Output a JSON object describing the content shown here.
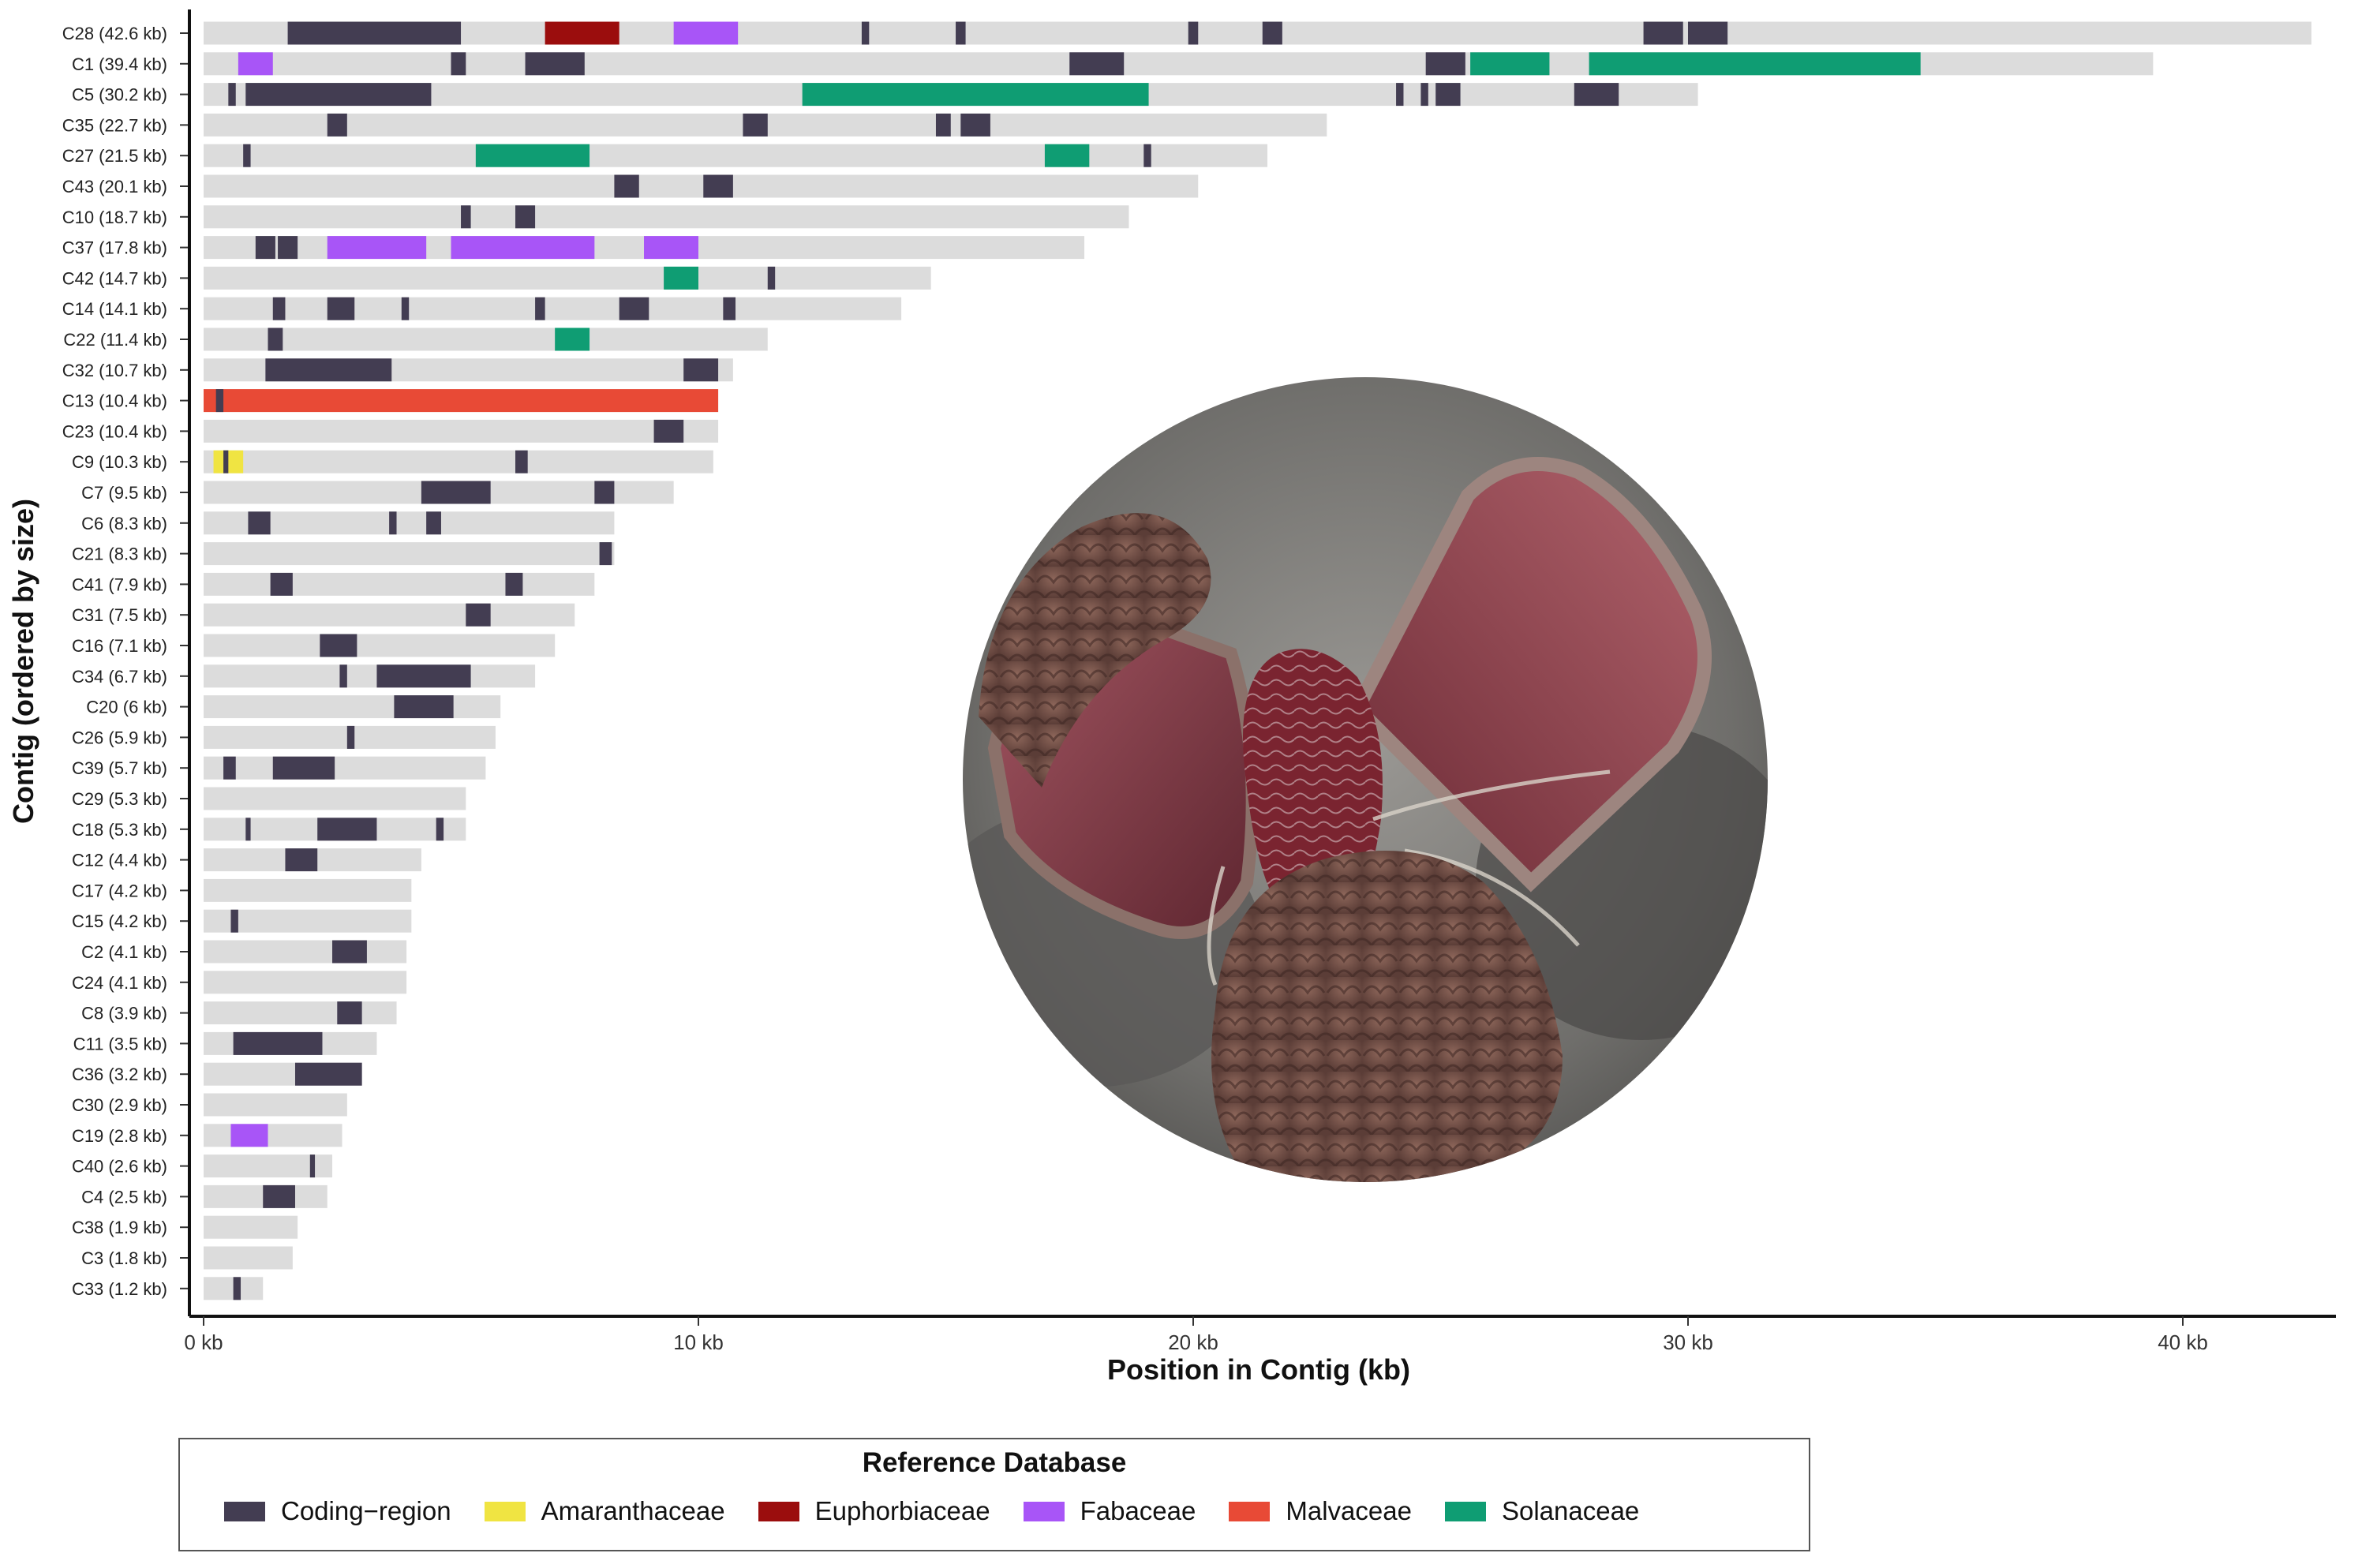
{
  "chart_data": {
    "type": "bar",
    "subtype": "horizontal-segmented-contig-map",
    "xlabel": "Position in Contig (kb)",
    "ylabel": "Contig (ordered by size)",
    "xlim": [
      0,
      43
    ],
    "xticks": [
      0,
      10,
      20,
      30,
      40
    ],
    "xtick_labels": [
      "0 kb",
      "10 kb",
      "20 kb",
      "30 kb",
      "40 kb"
    ],
    "grid": false,
    "legend": {
      "title": "Reference Database",
      "position": "bottom",
      "entries": [
        {
          "label": "Coding−region",
          "color": "#433d52"
        },
        {
          "label": "Amaranthaceae",
          "color": "#f0e442"
        },
        {
          "label": "Euphorbiaceae",
          "color": "#9b0d0d"
        },
        {
          "label": "Fabaceae",
          "color": "#a855f7"
        },
        {
          "label": "Malvaceae",
          "color": "#e84a36"
        },
        {
          "label": "Solanaceae",
          "color": "#0f9d73"
        }
      ]
    },
    "contig_color": "#dcdcdc",
    "contigs": [
      {
        "label": "C28 (42.6 kb)",
        "length": 42.6,
        "segments": [
          {
            "type": "Coding−region",
            "start": 1.7,
            "end": 5.2
          },
          {
            "type": "Euphorbiaceae",
            "start": 6.9,
            "end": 8.4
          },
          {
            "type": "Fabaceae",
            "start": 9.5,
            "end": 10.8
          },
          {
            "type": "Coding−region",
            "start": 13.3,
            "end": 13.45
          },
          {
            "type": "Coding−region",
            "start": 15.2,
            "end": 15.4
          },
          {
            "type": "Coding−region",
            "start": 19.9,
            "end": 20.1
          },
          {
            "type": "Coding−region",
            "start": 21.4,
            "end": 21.8
          },
          {
            "type": "Coding−region",
            "start": 29.1,
            "end": 29.9
          },
          {
            "type": "Coding−region",
            "start": 30.0,
            "end": 30.8
          }
        ]
      },
      {
        "label": "C1 (39.4 kb)",
        "length": 39.4,
        "segments": [
          {
            "type": "Fabaceae",
            "start": 0.7,
            "end": 1.4
          },
          {
            "type": "Coding−region",
            "start": 5.0,
            "end": 5.3
          },
          {
            "type": "Coding−region",
            "start": 6.5,
            "end": 7.7
          },
          {
            "type": "Coding−region",
            "start": 17.5,
            "end": 18.6
          },
          {
            "type": "Coding−region",
            "start": 24.7,
            "end": 25.5
          },
          {
            "type": "Solanaceae",
            "start": 25.6,
            "end": 27.2
          },
          {
            "type": "Solanaceae",
            "start": 28.0,
            "end": 34.7
          }
        ]
      },
      {
        "label": "C5 (30.2 kb)",
        "length": 30.2,
        "segments": [
          {
            "type": "Coding−region",
            "start": 0.5,
            "end": 0.65
          },
          {
            "type": "Coding−region",
            "start": 0.85,
            "end": 4.6
          },
          {
            "type": "Solanaceae",
            "start": 12.1,
            "end": 19.1
          },
          {
            "type": "Coding−region",
            "start": 24.1,
            "end": 24.25
          },
          {
            "type": "Coding−region",
            "start": 24.6,
            "end": 24.75
          },
          {
            "type": "Coding−region",
            "start": 24.9,
            "end": 25.4
          },
          {
            "type": "Coding−region",
            "start": 27.7,
            "end": 28.6
          }
        ]
      },
      {
        "label": "C35 (22.7 kb)",
        "length": 22.7,
        "segments": [
          {
            "type": "Coding−region",
            "start": 2.5,
            "end": 2.9
          },
          {
            "type": "Coding−region",
            "start": 10.9,
            "end": 11.4
          },
          {
            "type": "Coding−region",
            "start": 14.8,
            "end": 15.1
          },
          {
            "type": "Coding−region",
            "start": 15.3,
            "end": 15.9
          }
        ]
      },
      {
        "label": "C27 (21.5 kb)",
        "length": 21.5,
        "segments": [
          {
            "type": "Coding−region",
            "start": 0.8,
            "end": 0.95
          },
          {
            "type": "Solanaceae",
            "start": 5.5,
            "end": 7.8
          },
          {
            "type": "Solanaceae",
            "start": 17.0,
            "end": 17.9
          },
          {
            "type": "Coding−region",
            "start": 19.0,
            "end": 19.15
          }
        ]
      },
      {
        "label": "C43 (20.1 kb)",
        "length": 20.1,
        "segments": [
          {
            "type": "Coding−region",
            "start": 8.3,
            "end": 8.8
          },
          {
            "type": "Coding−region",
            "start": 10.1,
            "end": 10.7
          }
        ]
      },
      {
        "label": "C10 (18.7 kb)",
        "length": 18.7,
        "segments": [
          {
            "type": "Coding−region",
            "start": 5.2,
            "end": 5.4
          },
          {
            "type": "Coding−region",
            "start": 6.3,
            "end": 6.7
          }
        ]
      },
      {
        "label": "C37 (17.8 kb)",
        "length": 17.8,
        "segments": [
          {
            "type": "Coding−region",
            "start": 1.05,
            "end": 1.45
          },
          {
            "type": "Coding−region",
            "start": 1.5,
            "end": 1.9
          },
          {
            "type": "Fabaceae",
            "start": 2.5,
            "end": 4.5
          },
          {
            "type": "Fabaceae",
            "start": 5.0,
            "end": 7.9
          },
          {
            "type": "Fabaceae",
            "start": 8.9,
            "end": 10.0
          }
        ]
      },
      {
        "label": "C42 (14.7 kb)",
        "length": 14.7,
        "segments": [
          {
            "type": "Solanaceae",
            "start": 9.3,
            "end": 10.0
          },
          {
            "type": "Coding−region",
            "start": 11.4,
            "end": 11.55
          }
        ]
      },
      {
        "label": "C14 (14.1 kb)",
        "length": 14.1,
        "segments": [
          {
            "type": "Coding−region",
            "start": 1.4,
            "end": 1.65
          },
          {
            "type": "Coding−region",
            "start": 2.5,
            "end": 3.05
          },
          {
            "type": "Coding−region",
            "start": 4.0,
            "end": 4.15
          },
          {
            "type": "Coding−region",
            "start": 6.7,
            "end": 6.9
          },
          {
            "type": "Coding−region",
            "start": 8.4,
            "end": 9.0
          },
          {
            "type": "Coding−region",
            "start": 10.5,
            "end": 10.75
          }
        ]
      },
      {
        "label": "C22 (11.4 kb)",
        "length": 11.4,
        "segments": [
          {
            "type": "Coding−region",
            "start": 1.3,
            "end": 1.6
          },
          {
            "type": "Solanaceae",
            "start": 7.1,
            "end": 7.8
          }
        ]
      },
      {
        "label": "C32 (10.7 kb)",
        "length": 10.7,
        "segments": [
          {
            "type": "Coding−region",
            "start": 1.25,
            "end": 3.8
          },
          {
            "type": "Coding−region",
            "start": 9.7,
            "end": 10.4
          }
        ]
      },
      {
        "label": "C13 (10.4 kb)",
        "length": 10.4,
        "segments": [
          {
            "type": "Malvaceae",
            "start": 0.0,
            "end": 10.4
          },
          {
            "type": "Coding−region",
            "start": 0.25,
            "end": 0.4
          }
        ]
      },
      {
        "label": "C23 (10.4 kb)",
        "length": 10.4,
        "segments": [
          {
            "type": "Coding−region",
            "start": 9.1,
            "end": 9.7
          }
        ]
      },
      {
        "label": "C9 (10.3 kb)",
        "length": 10.3,
        "segments": [
          {
            "type": "Amaranthaceae",
            "start": 0.2,
            "end": 0.8
          },
          {
            "type": "Coding−region",
            "start": 0.4,
            "end": 0.5
          },
          {
            "type": "Coding−region",
            "start": 6.3,
            "end": 6.55
          }
        ]
      },
      {
        "label": "C7 (9.5 kb)",
        "length": 9.5,
        "segments": [
          {
            "type": "Coding−region",
            "start": 4.4,
            "end": 5.8
          },
          {
            "type": "Coding−region",
            "start": 7.9,
            "end": 8.3
          }
        ]
      },
      {
        "label": "C6 (8.3 kb)",
        "length": 8.3,
        "segments": [
          {
            "type": "Coding−region",
            "start": 0.9,
            "end": 1.35
          },
          {
            "type": "Coding−region",
            "start": 3.75,
            "end": 3.9
          },
          {
            "type": "Coding−region",
            "start": 4.5,
            "end": 4.8
          }
        ]
      },
      {
        "label": "C21 (8.3 kb)",
        "length": 8.3,
        "segments": [
          {
            "type": "Coding−region",
            "start": 8.0,
            "end": 8.25
          }
        ]
      },
      {
        "label": "C41 (7.9 kb)",
        "length": 7.9,
        "segments": [
          {
            "type": "Coding−region",
            "start": 1.35,
            "end": 1.8
          },
          {
            "type": "Coding−region",
            "start": 6.1,
            "end": 6.45
          }
        ]
      },
      {
        "label": "C31 (7.5 kb)",
        "length": 7.5,
        "segments": [
          {
            "type": "Coding−region",
            "start": 5.3,
            "end": 5.8
          }
        ]
      },
      {
        "label": "C16 (7.1 kb)",
        "length": 7.1,
        "segments": [
          {
            "type": "Coding−region",
            "start": 2.35,
            "end": 3.1
          }
        ]
      },
      {
        "label": "C34 (6.7 kb)",
        "length": 6.7,
        "segments": [
          {
            "type": "Coding−region",
            "start": 2.75,
            "end": 2.9
          },
          {
            "type": "Coding−region",
            "start": 3.5,
            "end": 5.4
          }
        ]
      },
      {
        "label": "C20 (6 kb)",
        "length": 6.0,
        "segments": [
          {
            "type": "Coding−region",
            "start": 3.85,
            "end": 5.05
          }
        ]
      },
      {
        "label": "C26 (5.9 kb)",
        "length": 5.9,
        "segments": [
          {
            "type": "Coding−region",
            "start": 2.9,
            "end": 3.05
          }
        ]
      },
      {
        "label": "C39 (5.7 kb)",
        "length": 5.7,
        "segments": [
          {
            "type": "Coding−region",
            "start": 0.4,
            "end": 0.65
          },
          {
            "type": "Coding−region",
            "start": 1.4,
            "end": 2.65
          }
        ]
      },
      {
        "label": "C29 (5.3 kb)",
        "length": 5.3,
        "segments": []
      },
      {
        "label": "C18 (5.3 kb)",
        "length": 5.3,
        "segments": [
          {
            "type": "Coding−region",
            "start": 0.85,
            "end": 0.95
          },
          {
            "type": "Coding−region",
            "start": 2.3,
            "end": 3.5
          },
          {
            "type": "Coding−region",
            "start": 4.7,
            "end": 4.85
          }
        ]
      },
      {
        "label": "C12 (4.4 kb)",
        "length": 4.4,
        "segments": [
          {
            "type": "Coding−region",
            "start": 1.65,
            "end": 2.3
          }
        ]
      },
      {
        "label": "C17 (4.2 kb)",
        "length": 4.2,
        "segments": []
      },
      {
        "label": "C15 (4.2 kb)",
        "length": 4.2,
        "segments": [
          {
            "type": "Coding−region",
            "start": 0.55,
            "end": 0.7
          }
        ]
      },
      {
        "label": "C2 (4.1 kb)",
        "length": 4.1,
        "segments": [
          {
            "type": "Coding−region",
            "start": 2.6,
            "end": 3.3
          }
        ]
      },
      {
        "label": "C24 (4.1 kb)",
        "length": 4.1,
        "segments": []
      },
      {
        "label": "C8 (3.9 kb)",
        "length": 3.9,
        "segments": [
          {
            "type": "Coding−region",
            "start": 2.7,
            "end": 3.2
          }
        ]
      },
      {
        "label": "C11 (3.5 kb)",
        "length": 3.5,
        "segments": [
          {
            "type": "Coding−region",
            "start": 0.6,
            "end": 2.4
          }
        ]
      },
      {
        "label": "C36 (3.2 kb)",
        "length": 3.2,
        "segments": [
          {
            "type": "Coding−region",
            "start": 1.85,
            "end": 3.2
          }
        ]
      },
      {
        "label": "C30 (2.9 kb)",
        "length": 2.9,
        "segments": []
      },
      {
        "label": "C19 (2.8 kb)",
        "length": 2.8,
        "segments": [
          {
            "type": "Fabaceae",
            "start": 0.55,
            "end": 1.3
          }
        ]
      },
      {
        "label": "C40 (2.6 kb)",
        "length": 2.6,
        "segments": [
          {
            "type": "Coding−region",
            "start": 2.15,
            "end": 2.25
          }
        ]
      },
      {
        "label": "C4 (2.5 kb)",
        "length": 2.5,
        "segments": [
          {
            "type": "Coding−region",
            "start": 1.2,
            "end": 1.85
          }
        ]
      },
      {
        "label": "C38 (1.9 kb)",
        "length": 1.9,
        "segments": []
      },
      {
        "label": "C3 (1.8 kb)",
        "length": 1.8,
        "segments": []
      },
      {
        "label": "C33 (1.2 kb)",
        "length": 1.2,
        "segments": [
          {
            "type": "Coding−region",
            "start": 0.6,
            "end": 0.75
          }
        ]
      }
    ]
  },
  "inset_photo": {
    "subject": "dried red-brown plant fruit with open capsule and wrinkled central structure",
    "colors": {
      "background": "#8a8a86",
      "capsule_inner": "#8c3a45",
      "capsule_outer": "#7a5a4f",
      "seed": "#6e1f28",
      "ground": "#595957"
    }
  }
}
